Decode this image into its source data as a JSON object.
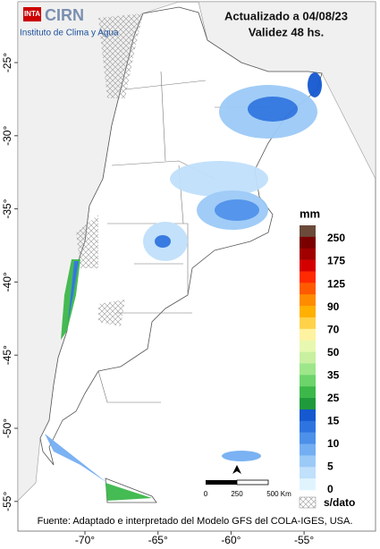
{
  "header": {
    "logo": "INTA",
    "brand": "CIRN",
    "institute": "Instituto de Clima y Agua",
    "updated": "Actualizado a 04/08/23",
    "validity": "Validez 48 hs."
  },
  "legend": {
    "unit": "mm",
    "labels": [
      "250",
      "175",
      "125",
      "90",
      "70",
      "50",
      "35",
      "25",
      "15",
      "10",
      "5",
      "0"
    ],
    "colors": [
      "#6b4a3a",
      "#7a0000",
      "#a00000",
      "#d40000",
      "#ff2a00",
      "#ff5a00",
      "#ff8c00",
      "#ffb000",
      "#ffd24a",
      "#fff2a0",
      "#e8f8b0",
      "#c8f0a0",
      "#9ee68a",
      "#6cd46a",
      "#3cb84a",
      "#1f9a3a",
      "#1558d0",
      "#2e74e0",
      "#4c90ea",
      "#74aef2",
      "#9ccaf7",
      "#c0e0fb",
      "#e0f4fd"
    ],
    "nodata": "s/dato"
  },
  "scale_bar": {
    "labels": [
      "0",
      "250",
      "500 Km"
    ]
  },
  "source": "Fuente: Adaptado e interpretado del Modelo GFS del COLA-IGES, USA.",
  "axes": {
    "y_labels": [
      "-25°",
      "-30°",
      "-35°",
      "-40°",
      "-45°",
      "-50°",
      "-55°"
    ],
    "x_labels": [
      "-70°",
      "-65°",
      "-60°",
      "-55°"
    ]
  }
}
